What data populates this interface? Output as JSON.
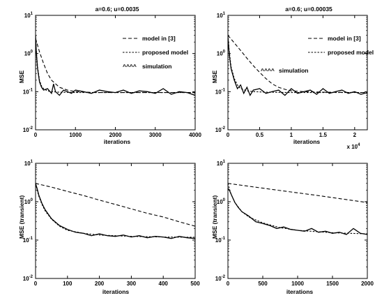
{
  "chart_data": [
    {
      "type": "line",
      "title": "a=0.6; u=0.0035",
      "xlabel": "iterations",
      "ylabel": "MSE",
      "xlim": [
        0,
        4000
      ],
      "ylim": [
        0.01,
        10
      ],
      "yscale": "log",
      "xticks": [
        "0",
        "1000",
        "2000",
        "3000",
        "4000"
      ],
      "yticks": [
        "10-2",
        "10-1",
        "100",
        "101"
      ],
      "x_multiplier": "",
      "legend": {
        "location": "top-right",
        "entries": [
          {
            "label": "model in [3]",
            "style": "long-dash"
          },
          {
            "label": "proposed model",
            "style": "short-dash"
          },
          {
            "label": "simulation",
            "marker": "^^^^"
          }
        ]
      },
      "series": [
        {
          "name": "model in [3]",
          "style": "long-dash",
          "x": [
            0,
            100,
            200,
            300,
            400,
            600,
            800,
            1000,
            1500,
            2000,
            3000,
            4000
          ],
          "y": [
            2.5,
            1.1,
            0.55,
            0.3,
            0.2,
            0.13,
            0.11,
            0.1,
            0.095,
            0.095,
            0.095,
            0.095
          ]
        },
        {
          "name": "proposed model",
          "style": "short-dash",
          "x": [
            0,
            20,
            50,
            100,
            150,
            200,
            300,
            400,
            600,
            1000,
            2000,
            3000,
            4000
          ],
          "y": [
            3.0,
            1.2,
            0.45,
            0.2,
            0.14,
            0.12,
            0.105,
            0.1,
            0.097,
            0.095,
            0.095,
            0.095,
            0.095
          ]
        },
        {
          "name": "simulation",
          "style": "solid",
          "x": [
            0,
            20,
            50,
            100,
            150,
            200,
            300,
            400,
            450,
            500,
            600,
            700,
            800,
            900,
            1000,
            1200,
            1400,
            1600,
            1800,
            2000,
            2200,
            2400,
            2600,
            2800,
            3000,
            3200,
            3400,
            3600,
            3800,
            4000
          ],
          "y": [
            3.0,
            1.1,
            0.4,
            0.18,
            0.13,
            0.11,
            0.12,
            0.09,
            0.16,
            0.1,
            0.08,
            0.11,
            0.1,
            0.09,
            0.11,
            0.1,
            0.09,
            0.11,
            0.1,
            0.095,
            0.11,
            0.09,
            0.105,
            0.1,
            0.09,
            0.12,
            0.085,
            0.1,
            0.095,
            0.08
          ]
        }
      ]
    },
    {
      "type": "line",
      "title": "a=0.6; u=0.00035",
      "xlabel": "iterations",
      "ylabel": "MSE",
      "xlim": [
        0,
        22000
      ],
      "ylim": [
        0.01,
        10
      ],
      "yscale": "log",
      "xticks": [
        "0",
        "0.5",
        "1",
        "1.5",
        "2"
      ],
      "yticks": [
        "10-2",
        "10-1",
        "100",
        "101"
      ],
      "x_multiplier": "x 104",
      "legend": {
        "location": "top-right",
        "entries": [
          {
            "label": "model in [3]",
            "style": "long-dash"
          },
          {
            "label": "proposed model",
            "style": "short-dash"
          },
          {
            "label": "simulation",
            "marker": "^^^^"
          }
        ]
      },
      "series": [
        {
          "name": "model in [3]",
          "style": "long-dash",
          "x": [
            0,
            1000,
            2000,
            3000,
            4000,
            5000,
            6000,
            7000,
            8000,
            9000,
            10000,
            12000,
            15000,
            22000
          ],
          "y": [
            3.0,
            1.9,
            1.2,
            0.75,
            0.48,
            0.32,
            0.22,
            0.16,
            0.13,
            0.115,
            0.105,
            0.1,
            0.097,
            0.095
          ]
        },
        {
          "name": "proposed model",
          "style": "short-dash",
          "x": [
            0,
            200,
            500,
            1000,
            1500,
            2000,
            3000,
            4000,
            6000,
            10000,
            22000
          ],
          "y": [
            3.0,
            1.2,
            0.45,
            0.22,
            0.15,
            0.12,
            0.105,
            0.1,
            0.097,
            0.095,
            0.095
          ]
        },
        {
          "name": "simulation",
          "style": "solid",
          "x": [
            0,
            200,
            500,
            1000,
            1500,
            2000,
            2500,
            3000,
            3500,
            4000,
            5000,
            6000,
            7000,
            8000,
            9000,
            10000,
            11000,
            12000,
            13000,
            14000,
            15000,
            16000,
            17000,
            18000,
            19000,
            20000,
            21000,
            22000
          ],
          "y": [
            2.8,
            1.0,
            0.4,
            0.2,
            0.12,
            0.15,
            0.09,
            0.13,
            0.08,
            0.11,
            0.12,
            0.09,
            0.1,
            0.11,
            0.08,
            0.12,
            0.09,
            0.1,
            0.11,
            0.085,
            0.12,
            0.09,
            0.1,
            0.11,
            0.09,
            0.1,
            0.085,
            0.095
          ]
        }
      ]
    },
    {
      "type": "line",
      "title": "",
      "xlabel": "iterations",
      "ylabel": "MSE (transient)",
      "xlim": [
        0,
        500
      ],
      "ylim": [
        0.01,
        10
      ],
      "yscale": "log",
      "xticks": [
        "0",
        "100",
        "200",
        "300",
        "400",
        "500"
      ],
      "yticks": [
        "10-2",
        "10-1",
        "100",
        "101"
      ],
      "x_multiplier": "",
      "legend": null,
      "series": [
        {
          "style": "long-dash",
          "x": [
            0,
            50,
            100,
            150,
            200,
            250,
            300,
            350,
            400,
            450,
            500
          ],
          "y": [
            3.0,
            2.4,
            1.85,
            1.45,
            1.1,
            0.85,
            0.65,
            0.5,
            0.4,
            0.3,
            0.23
          ]
        },
        {
          "style": "short-dash",
          "x": [
            0,
            5,
            10,
            20,
            30,
            50,
            75,
            100,
            150,
            200,
            300,
            400,
            500
          ],
          "y": [
            3.0,
            2.0,
            1.4,
            0.85,
            0.58,
            0.35,
            0.23,
            0.18,
            0.15,
            0.135,
            0.125,
            0.12,
            0.118
          ]
        },
        {
          "style": "solid",
          "x": [
            0,
            5,
            10,
            20,
            30,
            50,
            75,
            100,
            125,
            150,
            175,
            200,
            225,
            250,
            275,
            300,
            325,
            350,
            375,
            400,
            425,
            450,
            475,
            500
          ],
          "y": [
            3.0,
            2.2,
            1.5,
            0.9,
            0.62,
            0.36,
            0.24,
            0.19,
            0.16,
            0.15,
            0.13,
            0.145,
            0.13,
            0.125,
            0.135,
            0.12,
            0.13,
            0.115,
            0.125,
            0.12,
            0.11,
            0.125,
            0.115,
            0.11
          ]
        }
      ]
    },
    {
      "type": "line",
      "title": "",
      "xlabel": "iterations",
      "ylabel": "MSE (transient)",
      "xlim": [
        0,
        2000
      ],
      "ylim": [
        0.01,
        10
      ],
      "yscale": "log",
      "xticks": [
        "0",
        "500",
        "1000",
        "1500",
        "2000"
      ],
      "yticks": [
        "10-2",
        "10-1",
        "100",
        "101"
      ],
      "x_multiplier": "",
      "legend": null,
      "series": [
        {
          "style": "long-dash",
          "x": [
            0,
            250,
            500,
            750,
            1000,
            1250,
            1500,
            1750,
            2000
          ],
          "y": [
            3.0,
            2.6,
            2.25,
            1.95,
            1.7,
            1.48,
            1.28,
            1.1,
            0.95
          ]
        },
        {
          "style": "short-dash",
          "x": [
            0,
            20,
            50,
            100,
            200,
            300,
            500,
            750,
            1000,
            1500,
            2000
          ],
          "y": [
            3.0,
            2.2,
            1.5,
            0.95,
            0.55,
            0.4,
            0.28,
            0.21,
            0.18,
            0.155,
            0.145
          ]
        },
        {
          "style": "solid",
          "x": [
            0,
            20,
            50,
            100,
            150,
            200,
            300,
            400,
            500,
            600,
            700,
            800,
            900,
            1000,
            1100,
            1200,
            1300,
            1400,
            1500,
            1600,
            1700,
            1800,
            1900,
            2000
          ],
          "y": [
            2.2,
            2.0,
            1.5,
            0.95,
            0.7,
            0.55,
            0.42,
            0.3,
            0.27,
            0.24,
            0.2,
            0.22,
            0.19,
            0.18,
            0.17,
            0.2,
            0.16,
            0.17,
            0.15,
            0.16,
            0.14,
            0.2,
            0.15,
            0.14
          ]
        }
      ]
    }
  ]
}
